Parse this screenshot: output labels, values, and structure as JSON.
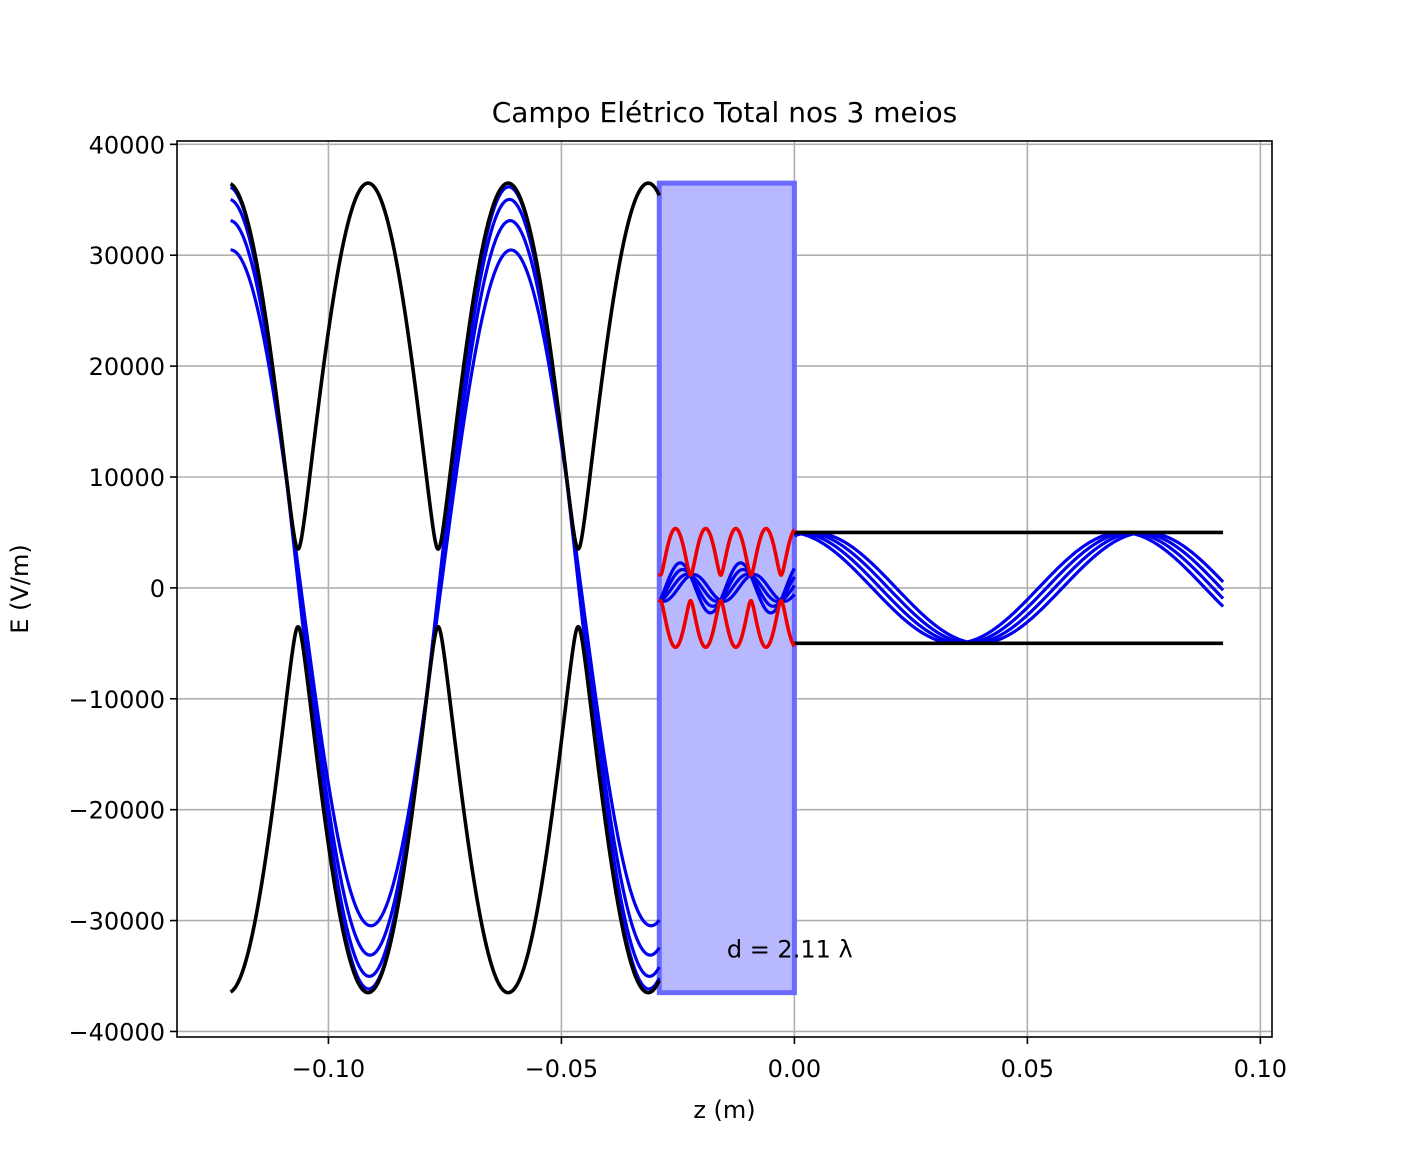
{
  "chart_data": {
    "type": "line",
    "title": "Campo Elétrico Total nos 3 meios",
    "xlabel": "z  (m)",
    "ylabel": "E  (V/m)",
    "xlim": [
      -0.1325,
      0.1025
    ],
    "ylim": [
      -40500,
      40300
    ],
    "xticks": [
      -0.1,
      -0.05,
      0.0,
      0.05,
      0.1
    ],
    "xtick_labels": [
      "−0.10",
      "−0.05",
      "0.00",
      "0.05",
      "0.10"
    ],
    "yticks": [
      -40000,
      -30000,
      -20000,
      -10000,
      0,
      10000,
      20000,
      30000,
      40000
    ],
    "ytick_labels": [
      "−40000",
      "−30000",
      "−20000",
      "−10000",
      "0",
      "10000",
      "20000",
      "30000",
      "40000"
    ],
    "grid": true,
    "legend": "none",
    "colors": {
      "envelope": "#000000",
      "snapshots": "#0000ee",
      "slab_envelope": "#ee0000",
      "slab_fill": "#b8b8ff",
      "slab_edge": "#6a6aff"
    },
    "slab": {
      "z_start": -0.029,
      "z_end": 0.0,
      "E_min": -36500,
      "E_max": 36500
    },
    "annotation": {
      "text": "d = 2.11 λ",
      "x": -0.0145,
      "y": -32500
    },
    "model": {
      "z_min": -0.121,
      "z_max": 0.092,
      "medium1": {
        "A": 20000,
        "B": 16500,
        "k": 104.5,
        "phi": 0.2722
      },
      "medium2": {
        "A": 3250,
        "B": 2100,
        "k": 485,
        "phi": -0.38
      },
      "medium3": {
        "amplitude": 5000,
        "k": 88,
        "phase0": -0.1
      },
      "snapshot_phases": [
        0.0,
        0.15,
        0.3,
        0.45
      ]
    }
  }
}
